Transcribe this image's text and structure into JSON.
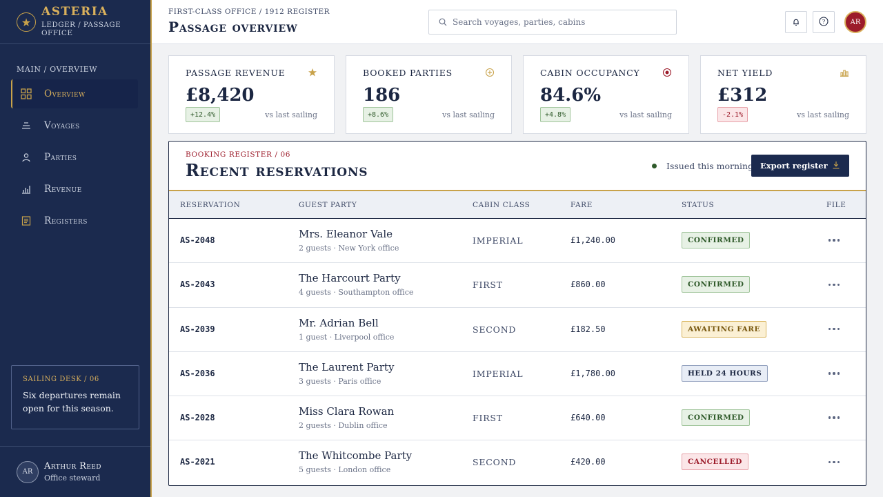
{
  "brand": {
    "name": "ASTERIA",
    "subtitle": "Ledger / Passage office"
  },
  "sidebar": {
    "section_title": "Main / Overview",
    "items": [
      {
        "label": "Overview",
        "icon": "grid-icon",
        "active": true
      },
      {
        "label": "Voyages",
        "icon": "waves-icon",
        "active": false
      },
      {
        "label": "Parties",
        "icon": "person-icon",
        "active": false
      },
      {
        "label": "Revenue",
        "icon": "bar-chart-icon",
        "active": false
      },
      {
        "label": "Registers",
        "icon": "ledger-icon",
        "active": false
      }
    ],
    "desk_card": {
      "title": "Sailing desk / 06",
      "text": "Six departures remain open for this season."
    },
    "user": {
      "initials": "AR",
      "name": "Arthur Reed",
      "role": "Office steward"
    }
  },
  "header": {
    "breadcrumb": "First-class office / 1912 register",
    "title": "Passage overview",
    "search_placeholder": "Search voyages, parties, cabins",
    "avatar_initials": "AR"
  },
  "kpis": [
    {
      "label": "Passage revenue",
      "value": "£8,420",
      "delta": "+12.4%",
      "trend": "up",
      "compare": "vs last sailing",
      "icon": "star-icon"
    },
    {
      "label": "Booked parties",
      "value": "186",
      "delta": "+8.6%",
      "trend": "up",
      "compare": "vs last sailing",
      "icon": "compass-icon"
    },
    {
      "label": "Cabin occupancy",
      "value": "84.6%",
      "delta": "+4.8%",
      "trend": "up",
      "compare": "vs last sailing",
      "icon": "target-icon"
    },
    {
      "label": "Net yield",
      "value": "£312",
      "delta": "-2.1%",
      "trend": "down",
      "compare": "vs last sailing",
      "icon": "yield-chart-icon"
    }
  ],
  "reservations": {
    "kicker": "Booking register / 06",
    "title": "Recent reservations",
    "issued": "Issued this morning",
    "export_label": "Export register",
    "columns": [
      "Reservation",
      "Guest party",
      "Cabin class",
      "Fare",
      "Status",
      "File"
    ],
    "rows": [
      {
        "id": "AS-2048",
        "guest": "Mrs. Eleanor Vale",
        "details": "2 guests · New York office",
        "cabin": "Imperial",
        "fare": "£1,240.00",
        "status": "Confirmed",
        "status_kind": "confirmed"
      },
      {
        "id": "AS-2043",
        "guest": "The Harcourt Party",
        "details": "4 guests · Southampton office",
        "cabin": "First",
        "fare": "£860.00",
        "status": "Confirmed",
        "status_kind": "confirmed"
      },
      {
        "id": "AS-2039",
        "guest": "Mr. Adrian Bell",
        "details": "1 guest · Liverpool office",
        "cabin": "Second",
        "fare": "£182.50",
        "status": "Awaiting fare",
        "status_kind": "awaiting"
      },
      {
        "id": "AS-2036",
        "guest": "The Laurent Party",
        "details": "3 guests · Paris office",
        "cabin": "Imperial",
        "fare": "£1,780.00",
        "status": "Held 24 hours",
        "status_kind": "held"
      },
      {
        "id": "AS-2028",
        "guest": "Miss Clara Rowan",
        "details": "2 guests · Dublin office",
        "cabin": "First",
        "fare": "£640.00",
        "status": "Confirmed",
        "status_kind": "confirmed"
      },
      {
        "id": "AS-2021",
        "guest": "The Whitcombe Party",
        "details": "5 guests · London office",
        "cabin": "Second",
        "fare": "£420.00",
        "status": "Cancelled",
        "status_kind": "cancelled"
      }
    ]
  },
  "colors": {
    "navy": "#1b2a4e",
    "gold": "#c8a24a",
    "crimson": "#9c1b2a",
    "green": "#2f5a2a"
  }
}
